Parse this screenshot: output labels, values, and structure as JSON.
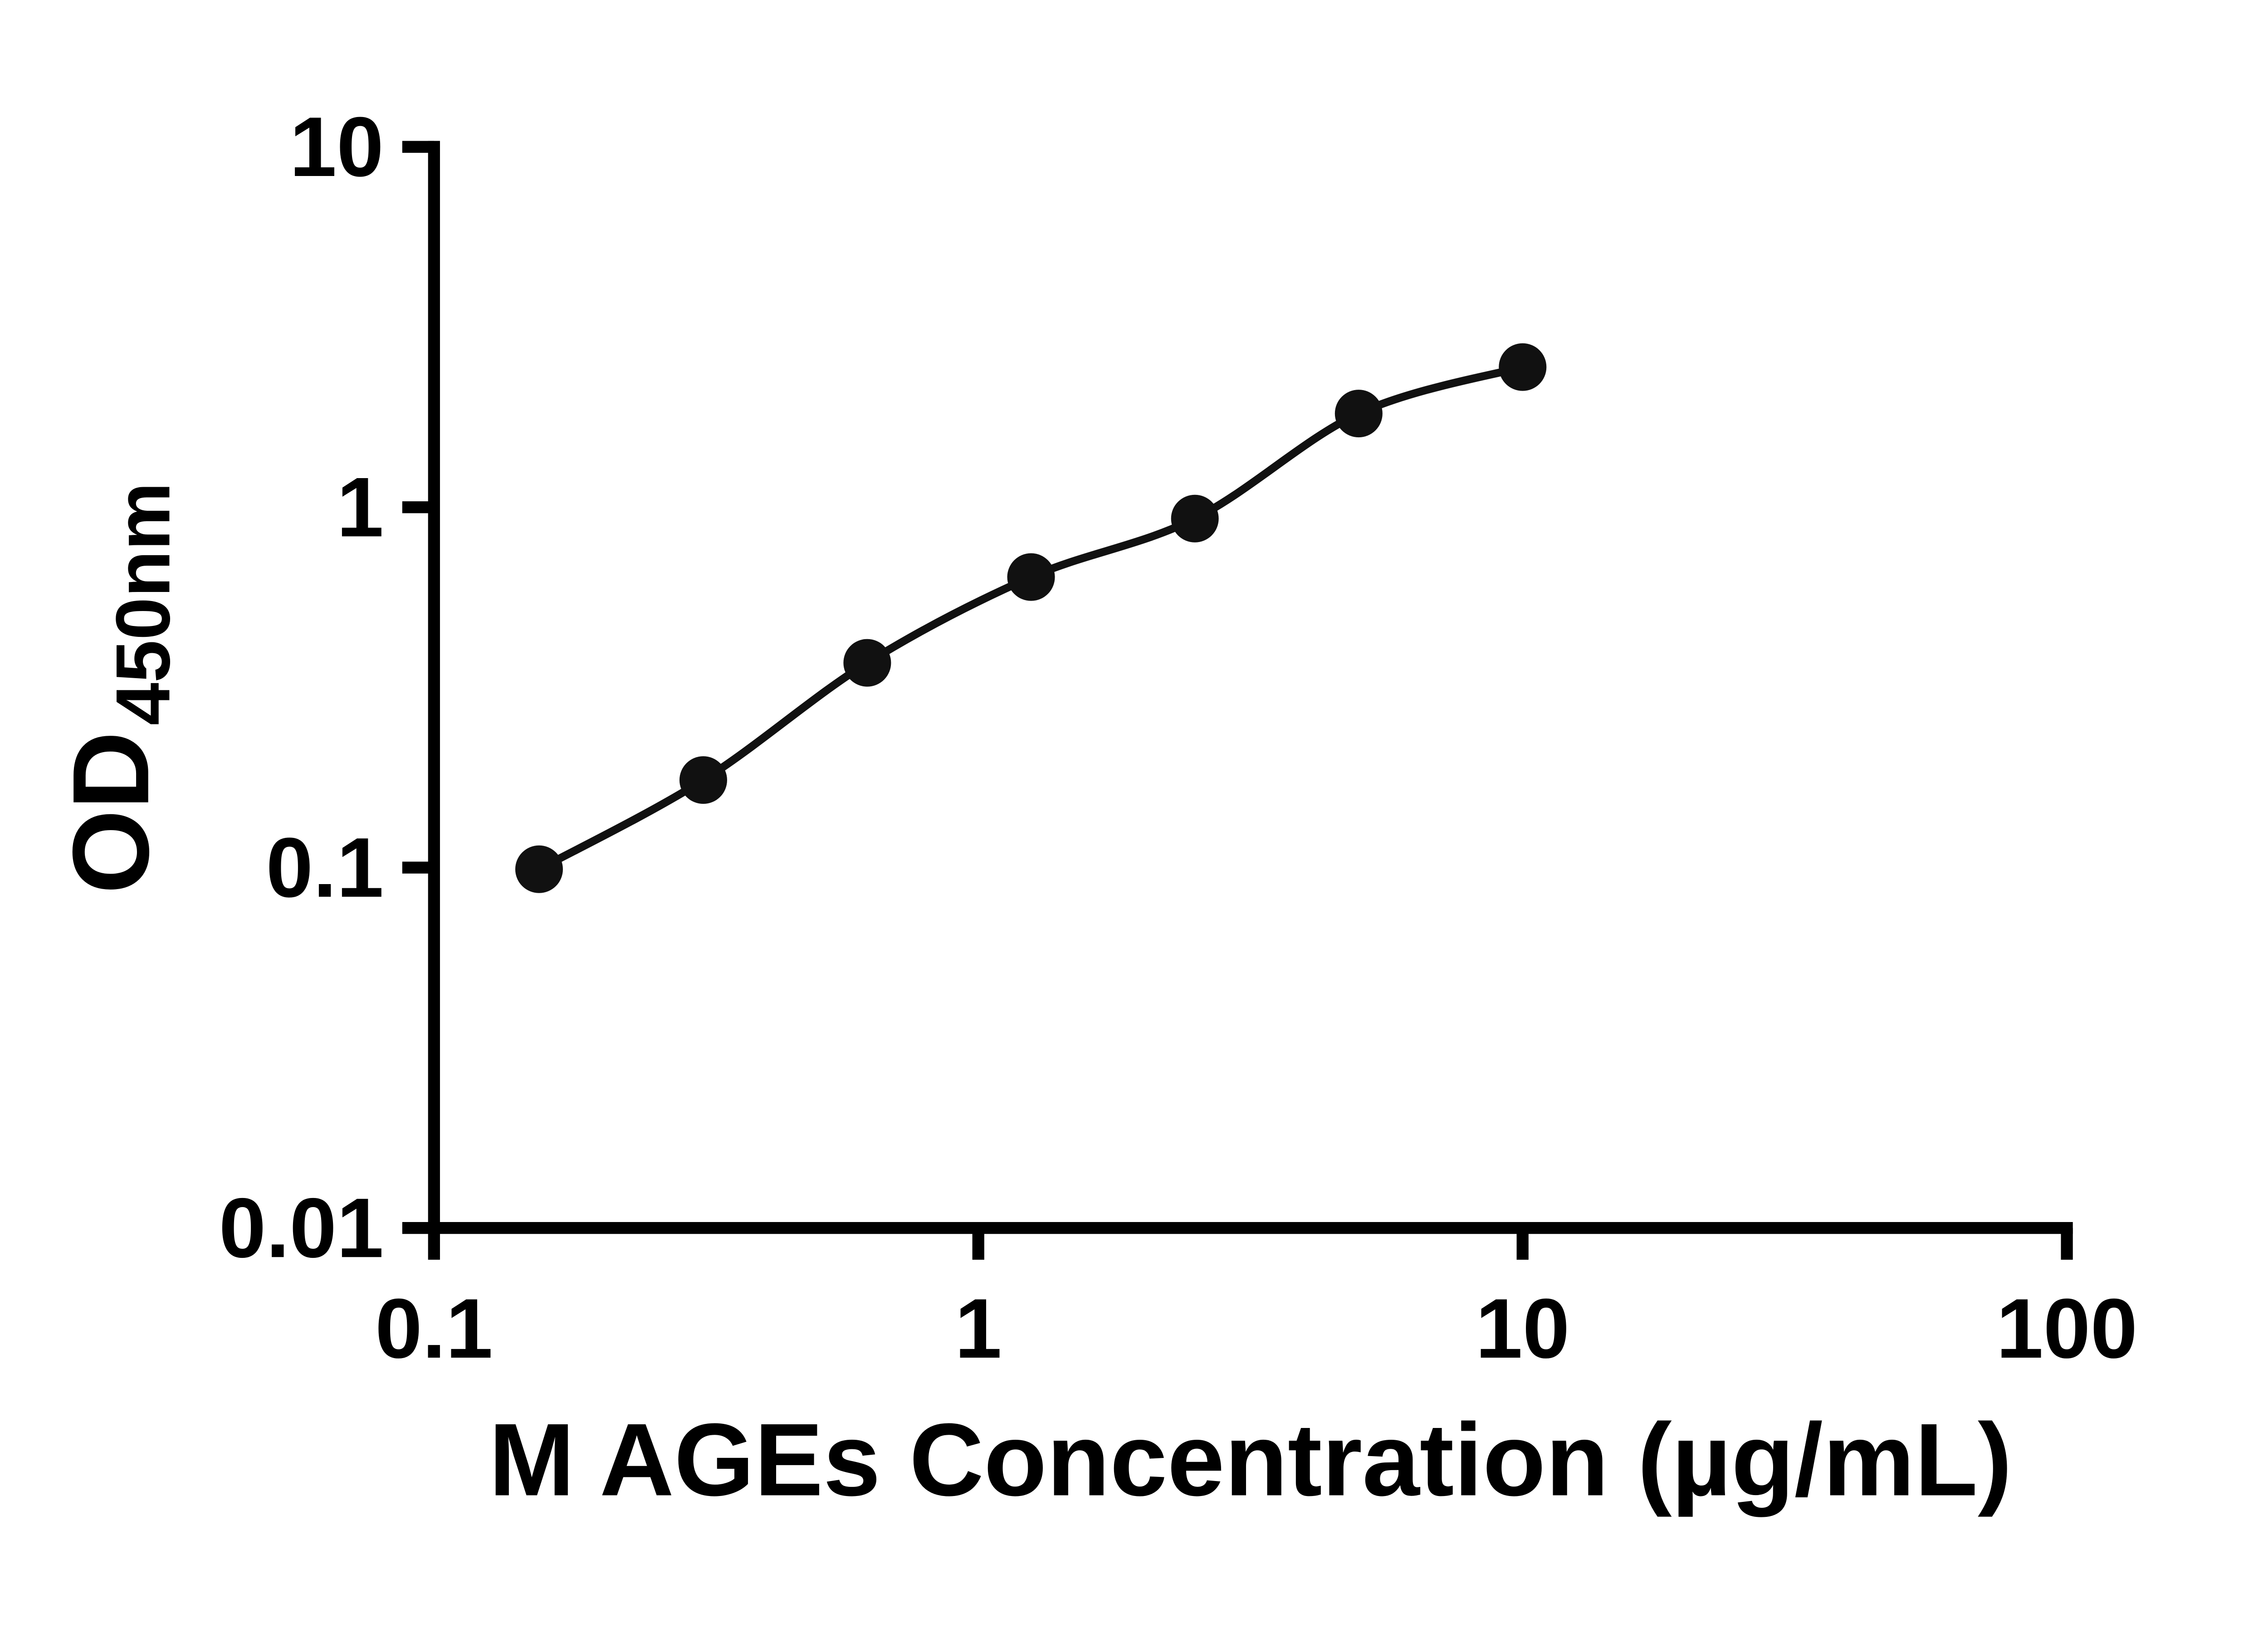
{
  "page": {
    "background": "#ffffff"
  },
  "chart_data": {
    "type": "scatter",
    "title": "",
    "xlabel": "M AGEs Concentration (µg/mL)",
    "ylabel": "OD450nm",
    "ylabel_main": "OD",
    "ylabel_sub": "450nm",
    "xscale": "log",
    "yscale": "log",
    "xlim": [
      0.1,
      100
    ],
    "ylim": [
      0.01,
      10
    ],
    "x_tick_values": [
      0.1,
      1,
      10,
      100
    ],
    "x_tick_labels": [
      "0.1",
      "1",
      "10",
      "100"
    ],
    "y_tick_values": [
      0.01,
      0.1,
      1,
      10
    ],
    "y_tick_labels": [
      "0.01",
      "0.1",
      "1",
      "10"
    ],
    "grid": false,
    "legend": "none",
    "axis_color": "#000000",
    "series": [
      {
        "x": [
          0.156,
          0.3125,
          0.625,
          1.25,
          2.5,
          5,
          10
        ],
        "y": [
          0.099,
          0.175,
          0.37,
          0.64,
          0.93,
          1.82,
          2.45
        ],
        "marker": "circle",
        "marker_color": "#111111",
        "line_color": "#111111"
      }
    ]
  }
}
